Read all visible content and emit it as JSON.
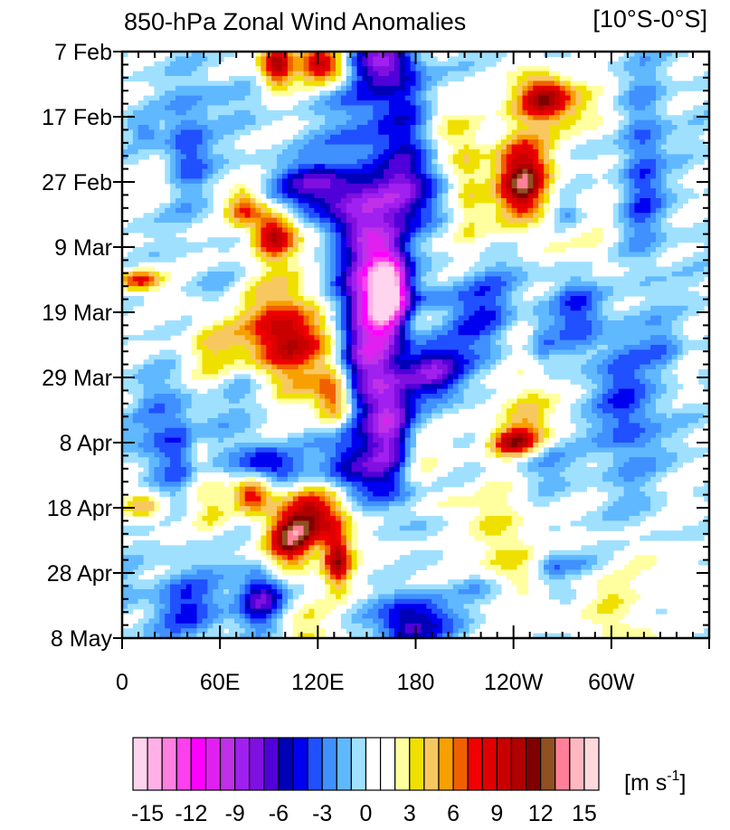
{
  "chart_data": {
    "type": "heatmap",
    "title": "850-hPa Zonal Wind Anomalies",
    "region_label": "[10°S-0°S]",
    "x_tick_labels": [
      "0",
      "60E",
      "120E",
      "180",
      "120W",
      "60W"
    ],
    "x_ticks_deg": [
      0,
      60,
      120,
      180,
      240,
      300
    ],
    "x_range_deg": [
      0,
      360
    ],
    "y_tick_labels": [
      "7 Feb",
      "17 Feb",
      "27 Feb",
      "9 Mar",
      "19 Mar",
      "29 Mar",
      "8 Apr",
      "18 Apr",
      "28 Apr",
      "8 May"
    ],
    "y_range_days": [
      0,
      90
    ],
    "colorbar": {
      "units_label": "[m s",
      "units_sup": "-1",
      "units_close": "]",
      "levels": [
        -16,
        -15,
        -14,
        -13,
        -12,
        -11,
        -10,
        -9,
        -8,
        -7,
        -6,
        -5,
        -4,
        -3,
        -2,
        -1,
        0,
        1,
        2,
        3,
        4,
        5,
        6,
        7,
        8,
        9,
        10,
        11,
        12,
        13,
        14,
        15,
        16
      ],
      "tick_labels": [
        "-15",
        "-12",
        "-9",
        "-6",
        "-3",
        "0",
        "3",
        "6",
        "9",
        "12",
        "15"
      ],
      "tick_values": [
        -15,
        -12,
        -9,
        -6,
        -3,
        0,
        3,
        6,
        9,
        12,
        15
      ],
      "colors": [
        "#ffd4ee",
        "#ffb0e6",
        "#ff80e0",
        "#ff40ee",
        "#ff00ff",
        "#e020f0",
        "#c030e8",
        "#a020f0",
        "#8010e0",
        "#5000d8",
        "#0000b8",
        "#0000f0",
        "#2050ff",
        "#4090ff",
        "#60b8ff",
        "#a0e0ff",
        "#ffffff",
        "#ffffff",
        "#ffffa0",
        "#f0e000",
        "#f8c860",
        "#f8a000",
        "#f06000",
        "#f00000",
        "#e00000",
        "#c80000",
        "#b00000",
        "#800000",
        "#905020",
        "#ff8098",
        "#ffb8c0",
        "#ffd8dc"
      ]
    },
    "anomalies": [
      {
        "lon": 95,
        "day": 2,
        "ampl": 11,
        "sx": 7,
        "sy": 2.5
      },
      {
        "lon": 122,
        "day": 2,
        "ampl": 10,
        "sx": 10,
        "sy": 2
      },
      {
        "lon": 160,
        "day": 1.5,
        "ampl": -7,
        "sx": 14,
        "sy": 2.5
      },
      {
        "lon": 258,
        "day": 7,
        "ampl": 11,
        "sx": 12,
        "sy": 2.5
      },
      {
        "lon": 245,
        "day": 19,
        "ampl": 11,
        "sx": 12,
        "sy": 5
      },
      {
        "lon": 212,
        "day": 21,
        "ampl": 4,
        "sx": 8,
        "sy": 7
      },
      {
        "lon": 75,
        "day": 24,
        "ampl": 7,
        "sx": 8,
        "sy": 2
      },
      {
        "lon": 93,
        "day": 28,
        "ampl": 10,
        "sx": 9,
        "sy": 2.5
      },
      {
        "lon": 10,
        "day": 35,
        "ampl": 8,
        "sx": 10,
        "sy": 1.2
      },
      {
        "lon": 100,
        "day": 44,
        "ampl": 11,
        "sx": 18,
        "sy": 6
      },
      {
        "lon": 55,
        "day": 46,
        "ampl": 4,
        "sx": 12,
        "sy": 4
      },
      {
        "lon": 130,
        "day": 53,
        "ampl": 8,
        "sx": 8,
        "sy": 3
      },
      {
        "lon": 240,
        "day": 60,
        "ampl": 9,
        "sx": 10,
        "sy": 1.5
      },
      {
        "lon": 80,
        "day": 68,
        "ampl": 9,
        "sx": 8,
        "sy": 2
      },
      {
        "lon": 120,
        "day": 71,
        "ampl": 10,
        "sx": 13,
        "sy": 3
      },
      {
        "lon": 103,
        "day": 75,
        "ampl": 11,
        "sx": 10,
        "sy": 3
      },
      {
        "lon": 132,
        "day": 78,
        "ampl": 10,
        "sx": 6,
        "sy": 3
      },
      {
        "lon": 15,
        "day": 70,
        "ampl": 5,
        "sx": 9,
        "sy": 1.5
      },
      {
        "lon": 55,
        "day": 70,
        "ampl": 3,
        "sx": 10,
        "sy": 3
      },
      {
        "lon": 195,
        "day": 10,
        "ampl": 4,
        "sx": 10,
        "sy": 4
      },
      {
        "lon": 290,
        "day": 30,
        "ampl": 2,
        "sx": 10,
        "sy": 6
      },
      {
        "lon": 250,
        "day": 50,
        "ampl": 3,
        "sx": 12,
        "sy": 6
      },
      {
        "lon": 240,
        "day": 80,
        "ampl": 3,
        "sx": 14,
        "sy": 6
      },
      {
        "lon": 230,
        "day": 72,
        "ampl": 2,
        "sx": 12,
        "sy": 6
      },
      {
        "lon": 170,
        "day": 8,
        "ampl": -5,
        "sx": 20,
        "sy": 4
      },
      {
        "lon": 120,
        "day": 21,
        "ampl": -7,
        "sx": 18,
        "sy": 3
      },
      {
        "lon": 175,
        "day": 21,
        "ampl": -7,
        "sx": 14,
        "sy": 5
      },
      {
        "lon": 150,
        "day": 30,
        "ampl": -8,
        "sx": 16,
        "sy": 7
      },
      {
        "lon": 163,
        "day": 37,
        "ampl": -14,
        "sx": 8,
        "sy": 4
      },
      {
        "lon": 150,
        "day": 46,
        "ampl": -8,
        "sx": 12,
        "sy": 9
      },
      {
        "lon": 190,
        "day": 49,
        "ampl": -7,
        "sx": 14,
        "sy": 3
      },
      {
        "lon": 165,
        "day": 58,
        "ampl": -7,
        "sx": 10,
        "sy": 7
      },
      {
        "lon": 90,
        "day": 64,
        "ampl": -6,
        "sx": 14,
        "sy": 2
      },
      {
        "lon": 140,
        "day": 63,
        "ampl": -5,
        "sx": 16,
        "sy": 4
      },
      {
        "lon": 85,
        "day": 84,
        "ampl": -7,
        "sx": 10,
        "sy": 3
      },
      {
        "lon": 180,
        "day": 87,
        "ampl": -6,
        "sx": 16,
        "sy": 2.5
      },
      {
        "lon": 40,
        "day": 15,
        "ampl": -4,
        "sx": 10,
        "sy": 6
      },
      {
        "lon": 320,
        "day": 18,
        "ampl": -4,
        "sx": 10,
        "sy": 10
      },
      {
        "lon": 310,
        "day": 55,
        "ampl": -4,
        "sx": 14,
        "sy": 8
      },
      {
        "lon": 220,
        "day": 40,
        "ampl": -4,
        "sx": 16,
        "sy": 6
      },
      {
        "lon": 30,
        "day": 60,
        "ampl": -4,
        "sx": 14,
        "sy": 6
      },
      {
        "lon": 280,
        "day": 40,
        "ampl": -4,
        "sx": 12,
        "sy": 5
      },
      {
        "lon": 40,
        "day": 85,
        "ampl": -4,
        "sx": 16,
        "sy": 4
      }
    ],
    "grid": "off",
    "contour_lines": "black outline at +8 and -6 m s-1"
  }
}
